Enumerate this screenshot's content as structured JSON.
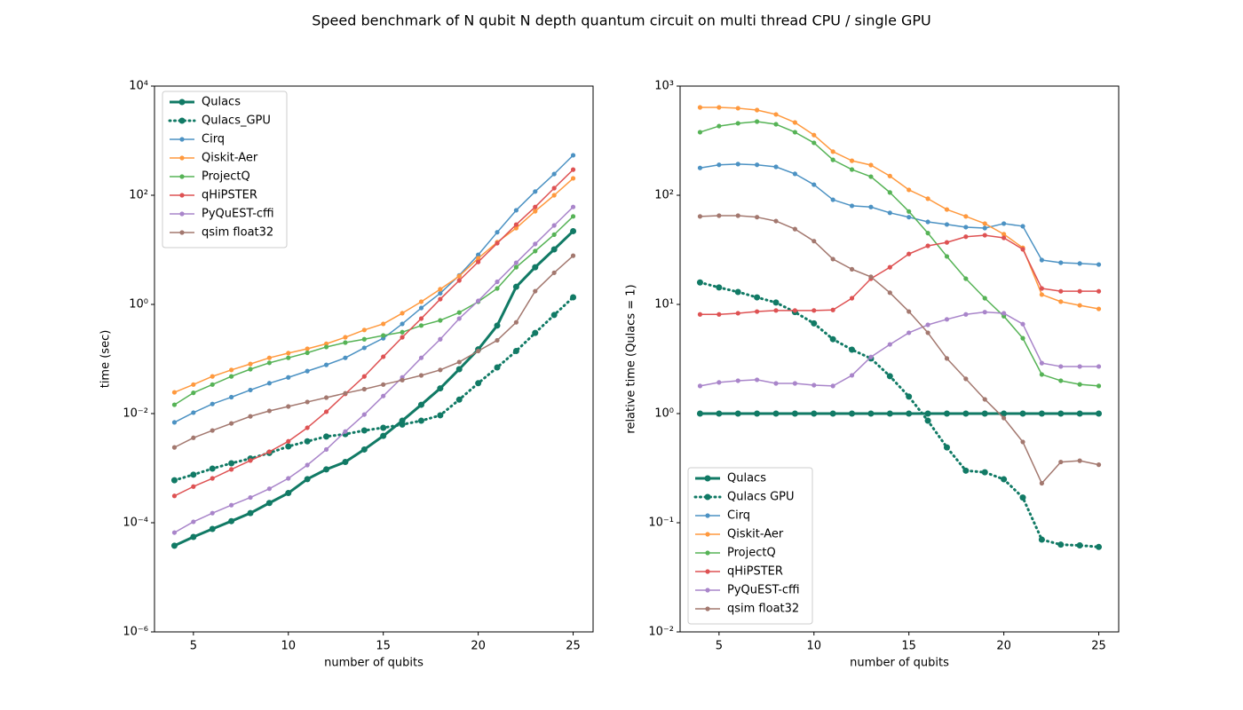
{
  "title": "Speed benchmark of N qubit N depth quantum circuit on multi thread CPU / single GPU",
  "chart_data": [
    {
      "type": "line",
      "xlabel": "number of qubits",
      "ylabel": "time (sec)",
      "yscale": "log",
      "legend": "upper left",
      "x": [
        4,
        5,
        6,
        7,
        8,
        9,
        10,
        11,
        12,
        13,
        14,
        15,
        16,
        17,
        18,
        19,
        20,
        21,
        22,
        23,
        24,
        25
      ],
      "xlim": [
        2.95,
        26.05
      ],
      "xticks": [
        5,
        10,
        15,
        20,
        25
      ],
      "ylim": [
        1e-06,
        10000
      ],
      "yticks": [
        {
          "value": 1e-06,
          "label": "10⁻⁶"
        },
        {
          "value": 0.0001,
          "label": "10⁻⁴"
        },
        {
          "value": 0.01,
          "label": "10⁻²"
        },
        {
          "value": 1,
          "label": "10⁰"
        },
        {
          "value": 100,
          "label": "10²"
        },
        {
          "value": 10000,
          "label": "10⁴"
        }
      ],
      "series": [
        {
          "name": "Qulacs",
          "color": "#117a65",
          "linewidth": 3,
          "values": [
            3.8e-05,
            5.5e-05,
            7.7e-05,
            0.000107,
            0.00015,
            0.00023,
            0.00035,
            0.00063,
            0.00095,
            0.0013,
            0.0022,
            0.0039,
            0.0074,
            0.0145,
            0.029,
            0.065,
            0.15,
            0.41,
            2.1,
            4.8,
            10.2,
            22
          ]
        },
        {
          "name": "Qulacs_GPU",
          "color": "#117a65",
          "linewidth": 3,
          "linestyle": "dotted",
          "values": [
            0.0006,
            0.00076,
            0.00098,
            0.00123,
            0.0015,
            0.0019,
            0.0025,
            0.0031,
            0.0038,
            0.0042,
            0.0049,
            0.0055,
            0.0063,
            0.0074,
            0.0093,
            0.018,
            0.036,
            0.07,
            0.14,
            0.3,
            0.64,
            1.35
          ]
        },
        {
          "name": "Cirq",
          "color": "#4c92c3",
          "values": [
            0.0069,
            0.0104,
            0.015,
            0.02,
            0.027,
            0.036,
            0.046,
            0.06,
            0.078,
            0.105,
            0.16,
            0.24,
            0.44,
            0.86,
            1.6,
            3.4,
            8.1,
            21,
            53,
            117,
            245,
            540
          ]
        },
        {
          "name": "Qiskit-Aer",
          "color": "#ff993e",
          "values": [
            0.0245,
            0.034,
            0.048,
            0.063,
            0.081,
            0.105,
            0.128,
            0.154,
            0.19,
            0.25,
            0.34,
            0.44,
            0.69,
            1.12,
            1.9,
            3.3,
            7,
            13.8,
            25,
            51,
            100,
            204
          ]
        },
        {
          "name": "ProjectQ",
          "color": "#56b356",
          "values": [
            0.0145,
            0.024,
            0.034,
            0.048,
            0.065,
            0.085,
            0.105,
            0.13,
            0.166,
            0.2,
            0.23,
            0.27,
            0.31,
            0.41,
            0.51,
            0.71,
            1.12,
            1.96,
            4.8,
            9.5,
            19,
            41
          ]
        },
        {
          "name": "qHiPSTER",
          "color": "#de5253",
          "values": [
            0.00031,
            0.00046,
            0.00065,
            0.00095,
            0.00138,
            0.002,
            0.0031,
            0.0055,
            0.0108,
            0.023,
            0.048,
            0.11,
            0.25,
            0.55,
            1.25,
            2.75,
            6,
            13.2,
            29,
            61,
            135,
            295
          ]
        },
        {
          "name": "PyQuEST-cffi",
          "color": "#a985ca",
          "values": [
            6.6e-05,
            0.000104,
            0.00015,
            0.00021,
            0.00029,
            0.00042,
            0.00065,
            0.00114,
            0.0022,
            0.0047,
            0.0096,
            0.021,
            0.046,
            0.105,
            0.23,
            0.55,
            1.16,
            2.6,
            5.8,
            12.8,
            28,
            61
          ]
        },
        {
          "name": "qsim float32",
          "color": "#a3786f",
          "values": [
            0.0024,
            0.0036,
            0.0049,
            0.0066,
            0.0089,
            0.0112,
            0.0135,
            0.0163,
            0.0196,
            0.0236,
            0.028,
            0.034,
            0.041,
            0.05,
            0.063,
            0.088,
            0.14,
            0.22,
            0.47,
            1.75,
            3.8,
            7.8
          ]
        }
      ]
    },
    {
      "type": "line",
      "xlabel": "number of qubits",
      "ylabel": "relative time (Qulacs = 1)",
      "yscale": "log",
      "legend": "lower left",
      "x": [
        4,
        5,
        6,
        7,
        8,
        9,
        10,
        11,
        12,
        13,
        14,
        15,
        16,
        17,
        18,
        19,
        20,
        21,
        22,
        23,
        24,
        25
      ],
      "xlim": [
        2.95,
        26.05
      ],
      "xticks": [
        5,
        10,
        15,
        20,
        25
      ],
      "ylim": [
        0.01,
        1000
      ],
      "yticks": [
        {
          "value": 0.01,
          "label": "10⁻²"
        },
        {
          "value": 0.1,
          "label": "10⁻¹"
        },
        {
          "value": 1,
          "label": "10⁰"
        },
        {
          "value": 10,
          "label": "10¹"
        },
        {
          "value": 100,
          "label": "10²"
        },
        {
          "value": 1000,
          "label": "10³"
        }
      ],
      "series": [
        {
          "name": "Qulacs",
          "color": "#117a65",
          "linewidth": 3,
          "values": [
            1,
            1,
            1,
            1,
            1,
            1,
            1,
            1,
            1,
            1,
            1,
            1,
            1,
            1,
            1,
            1,
            1,
            1,
            1,
            1,
            1,
            1
          ]
        },
        {
          "name": "Qulacs GPU",
          "color": "#117a65",
          "linewidth": 3,
          "linestyle": "dotted",
          "values": [
            15.9,
            14.3,
            13,
            11.6,
            10.4,
            8.5,
            6.7,
            4.8,
            3.85,
            3.2,
            2.2,
            1.43,
            0.86,
            0.49,
            0.3,
            0.29,
            0.25,
            0.17,
            0.07,
            0.063,
            0.062,
            0.06
          ]
        },
        {
          "name": "Cirq",
          "color": "#4c92c3",
          "values": [
            178,
            190,
            193,
            190,
            182,
            157,
            125,
            91,
            80,
            78,
            69,
            63,
            57,
            54,
            51,
            50,
            55,
            52,
            25.5,
            24.1,
            23.7,
            23.2
          ]
        },
        {
          "name": "Qiskit-Aer",
          "color": "#ff993e",
          "values": [
            638,
            638,
            627,
            603,
            550,
            464,
            356,
            251,
            207,
            189,
            150,
            112,
            93,
            74,
            64,
            55,
            44,
            33,
            12.3,
            10.6,
            9.8,
            9.1
          ]
        },
        {
          "name": "ProjectQ",
          "color": "#56b356",
          "values": [
            378,
            430,
            456,
            473,
            447,
            378,
            302,
            211,
            172,
            148,
            106,
            71,
            45,
            27.5,
            17.2,
            11.4,
            7.8,
            4.9,
            2.28,
            2,
            1.85,
            1.79
          ]
        },
        {
          "name": "qHiPSTER",
          "color": "#de5253",
          "values": [
            8.1,
            8.1,
            8.3,
            8.6,
            8.8,
            8.8,
            8.8,
            8.9,
            11.4,
            17.2,
            21.9,
            29,
            34.4,
            37,
            41.7,
            43,
            40.7,
            32,
            14,
            13.2,
            13.2,
            13.2
          ]
        },
        {
          "name": "PyQuEST-cffi",
          "color": "#a985ca",
          "values": [
            1.79,
            1.93,
            2,
            2.04,
            1.89,
            1.89,
            1.82,
            1.79,
            2.24,
            3.3,
            4.3,
            5.5,
            6.5,
            7.3,
            8.1,
            8.5,
            8.3,
            6.6,
            2.9,
            2.7,
            2.7,
            2.7
          ]
        },
        {
          "name": "qsim float32",
          "color": "#a3786f",
          "values": [
            64,
            65,
            65,
            63,
            58,
            49,
            38,
            26,
            21,
            17.9,
            12.8,
            8.6,
            5.5,
            3.2,
            2.08,
            1.35,
            0.91,
            0.55,
            0.23,
            0.36,
            0.37,
            0.34
          ]
        }
      ]
    }
  ]
}
